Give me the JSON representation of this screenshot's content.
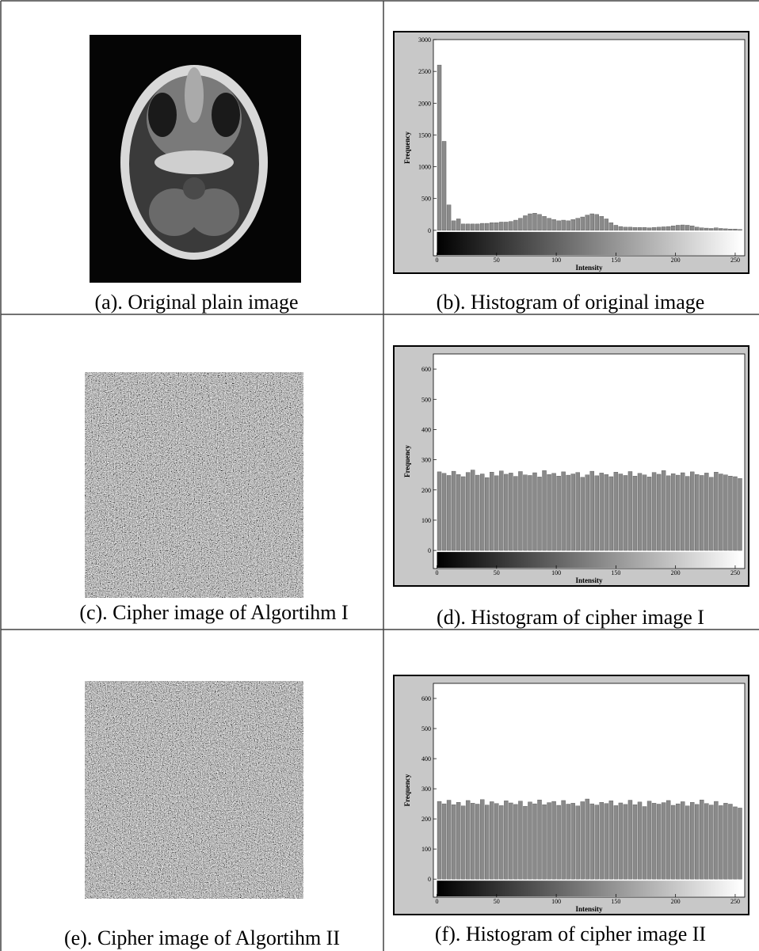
{
  "captions": [
    "(a). Original plain image",
    "(b). Histogram of original image",
    "(c). Cipher image of  Algortihm I",
    "(d). Histogram of cipher image I",
    "(e). Cipher image of Algortihm II",
    "(f). Histogram of cipher image II"
  ],
  "chart_data": [
    {
      "type": "histogram",
      "xlabel": "Intensity",
      "ylabel": "Frequency",
      "color": "#8a8a8a",
      "xlim": [
        -3,
        258
      ],
      "ylim": [
        -400,
        3000
      ],
      "xticks": [
        0,
        50,
        100,
        150,
        200,
        250
      ],
      "yticks": [
        0,
        500,
        1000,
        1500,
        2000,
        2500,
        3000
      ],
      "bins": [
        0,
        4,
        8,
        12,
        16,
        20,
        24,
        28,
        32,
        36,
        40,
        44,
        48,
        52,
        56,
        60,
        64,
        68,
        72,
        76,
        80,
        84,
        88,
        92,
        96,
        100,
        104,
        108,
        112,
        116,
        120,
        124,
        128,
        132,
        136,
        140,
        144,
        148,
        152,
        156,
        160,
        164,
        168,
        172,
        176,
        180,
        184,
        188,
        192,
        196,
        200,
        204,
        208,
        212,
        216,
        220,
        224,
        228,
        232,
        236,
        240,
        244,
        248,
        252,
        256
      ],
      "values": [
        2600,
        1400,
        400,
        150,
        180,
        100,
        100,
        100,
        100,
        110,
        110,
        120,
        120,
        130,
        130,
        140,
        160,
        190,
        230,
        260,
        270,
        250,
        220,
        190,
        170,
        150,
        160,
        150,
        170,
        190,
        210,
        240,
        260,
        250,
        220,
        180,
        120,
        80,
        60,
        50,
        50,
        45,
        45,
        45,
        40,
        45,
        50,
        55,
        60,
        70,
        80,
        85,
        80,
        70,
        50,
        40,
        35,
        30,
        40,
        30,
        25,
        20,
        20,
        15
      ]
    },
    {
      "type": "histogram",
      "xlabel": "Intensity",
      "ylabel": "Frequency",
      "color": "#8a8a8a",
      "xlim": [
        -3,
        258
      ],
      "ylim": [
        -60,
        650
      ],
      "xticks": [
        0,
        50,
        100,
        150,
        200,
        250
      ],
      "yticks": [
        0,
        100,
        200,
        300,
        400,
        500,
        600
      ],
      "bins": [
        0,
        4,
        8,
        12,
        16,
        20,
        24,
        28,
        32,
        36,
        40,
        44,
        48,
        52,
        56,
        60,
        64,
        68,
        72,
        76,
        80,
        84,
        88,
        92,
        96,
        100,
        104,
        108,
        112,
        116,
        120,
        124,
        128,
        132,
        136,
        140,
        144,
        148,
        152,
        156,
        160,
        164,
        168,
        172,
        176,
        180,
        184,
        188,
        192,
        196,
        200,
        204,
        208,
        212,
        216,
        220,
        224,
        228,
        232,
        236,
        240,
        244,
        248,
        252,
        256
      ],
      "values": [
        260,
        255,
        248,
        262,
        251,
        244,
        258,
        266,
        249,
        253,
        241,
        259,
        247,
        263,
        252,
        256,
        245,
        261,
        250,
        248,
        257,
        243,
        264,
        251,
        255,
        246,
        260,
        249,
        253,
        258,
        242,
        250,
        262,
        247,
        256,
        251,
        244,
        259,
        253,
        248,
        261,
        246,
        255,
        250,
        243,
        258,
        252,
        264,
        247,
        254,
        249,
        257,
        245,
        260,
        251,
        248,
        256,
        242,
        259,
        253,
        250,
        246,
        244,
        238
      ]
    },
    {
      "type": "histogram",
      "xlabel": "Intensity",
      "ylabel": "Frequency",
      "color": "#8a8a8a",
      "xlim": [
        -3,
        258
      ],
      "ylim": [
        -60,
        650
      ],
      "xticks": [
        0,
        50,
        100,
        150,
        200,
        250
      ],
      "yticks": [
        0,
        100,
        200,
        300,
        400,
        500,
        600
      ],
      "bins": [
        0,
        4,
        8,
        12,
        16,
        20,
        24,
        28,
        32,
        36,
        40,
        44,
        48,
        52,
        56,
        60,
        64,
        68,
        72,
        76,
        80,
        84,
        88,
        92,
        96,
        100,
        104,
        108,
        112,
        116,
        120,
        124,
        128,
        132,
        136,
        140,
        144,
        148,
        152,
        156,
        160,
        164,
        168,
        172,
        176,
        180,
        184,
        188,
        192,
        196,
        200,
        204,
        208,
        212,
        216,
        220,
        224,
        228,
        232,
        236,
        240,
        244,
        248,
        252,
        256
      ],
      "values": [
        258,
        250,
        262,
        247,
        255,
        243,
        261,
        252,
        249,
        264,
        246,
        257,
        251,
        244,
        260,
        253,
        248,
        259,
        242,
        256,
        250,
        263,
        247,
        254,
        258,
        245,
        261,
        249,
        252,
        243,
        257,
        266,
        250,
        246,
        255,
        251,
        260,
        244,
        253,
        248,
        262,
        247,
        256,
        241,
        259,
        252,
        249,
        254,
        261,
        245,
        250,
        257,
        243,
        255,
        248,
        263,
        251,
        246,
        258,
        244,
        252,
        249,
        240,
        236
      ]
    }
  ]
}
